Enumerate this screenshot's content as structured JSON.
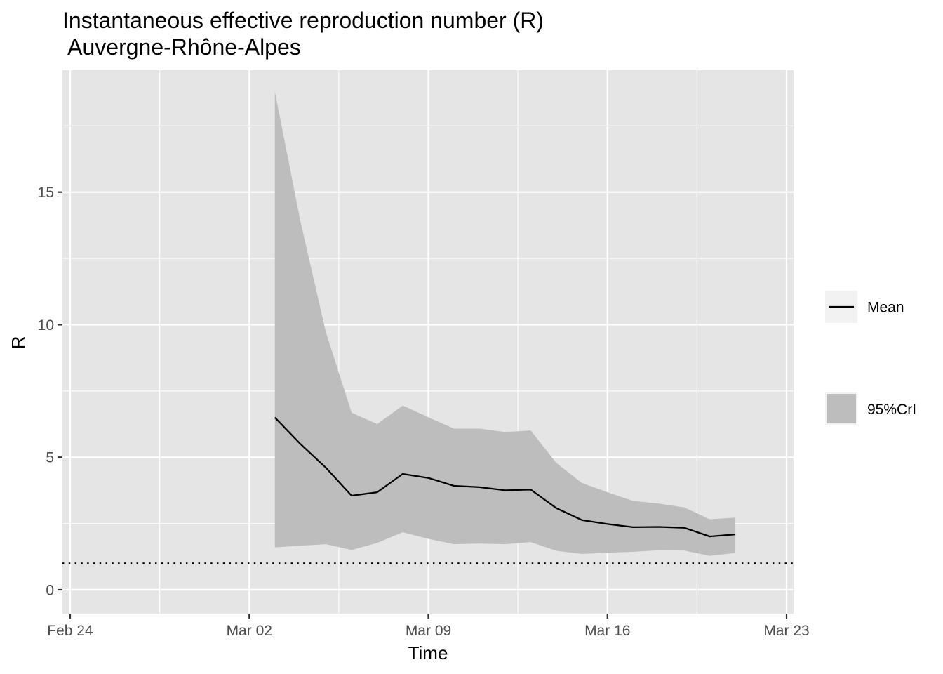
{
  "chart_data": {
    "type": "line",
    "title": "Instantaneous effective reproduction number (R)",
    "subtitle": " Auvergne-Rhône-Alpes",
    "xlabel": "Time",
    "ylabel": "R",
    "xlim": [
      "2020-02-24",
      "2020-03-23"
    ],
    "ylim": [
      -0.9,
      19.6
    ],
    "x_ticks": [
      {
        "date": "2020-02-24",
        "label": "Feb 24"
      },
      {
        "date": "2020-03-02",
        "label": "Mar 02"
      },
      {
        "date": "2020-03-09",
        "label": "Mar 09"
      },
      {
        "date": "2020-03-16",
        "label": "Mar 16"
      },
      {
        "date": "2020-03-23",
        "label": "Mar 23"
      }
    ],
    "x_minor_ticks": [
      "2020-02-27T12:00",
      "2020-03-05T12:00",
      "2020-03-12T12:00",
      "2020-03-19T12:00"
    ],
    "y_ticks": [
      0,
      5,
      10,
      15
    ],
    "y_minor_ticks": [
      2.5,
      7.5,
      12.5,
      17.5
    ],
    "grid": true,
    "reference_line": {
      "y": 1,
      "style": "dotted"
    },
    "x": [
      "2020-03-03",
      "2020-03-04",
      "2020-03-05",
      "2020-03-06",
      "2020-03-07",
      "2020-03-08",
      "2020-03-09",
      "2020-03-10",
      "2020-03-11",
      "2020-03-12",
      "2020-03-13",
      "2020-03-14",
      "2020-03-15",
      "2020-03-16",
      "2020-03-17",
      "2020-03-18",
      "2020-03-19",
      "2020-03-20",
      "2020-03-21"
    ],
    "series": [
      {
        "name": "Mean",
        "kind": "line",
        "color": "#000000",
        "values": [
          6.5,
          5.5,
          4.6,
          3.55,
          3.68,
          4.37,
          4.22,
          3.92,
          3.87,
          3.75,
          3.78,
          3.08,
          2.63,
          2.48,
          2.36,
          2.37,
          2.34,
          2.01,
          2.09
        ]
      },
      {
        "name": "95%CrI",
        "kind": "ribbon",
        "color": "#bdbdbd",
        "lower": [
          1.6,
          1.66,
          1.72,
          1.5,
          1.77,
          2.17,
          1.92,
          1.72,
          1.74,
          1.72,
          1.8,
          1.47,
          1.35,
          1.4,
          1.43,
          1.49,
          1.48,
          1.28,
          1.39
        ],
        "upper": [
          18.8,
          13.9,
          9.7,
          6.68,
          6.25,
          6.95,
          6.51,
          6.08,
          6.08,
          5.95,
          6.01,
          4.79,
          4.03,
          3.68,
          3.35,
          3.25,
          3.11,
          2.66,
          2.72
        ]
      }
    ],
    "legend": {
      "position": "right",
      "entries": [
        {
          "label": "Mean",
          "kind": "line"
        },
        {
          "label": "95%CrI",
          "kind": "fill"
        }
      ]
    },
    "colors": {
      "panel_background": "#e5e5e5",
      "grid": "#ffffff",
      "ribbon": "#bdbdbd",
      "line": "#000000",
      "legend_key_background": "#f2f2f2"
    }
  }
}
